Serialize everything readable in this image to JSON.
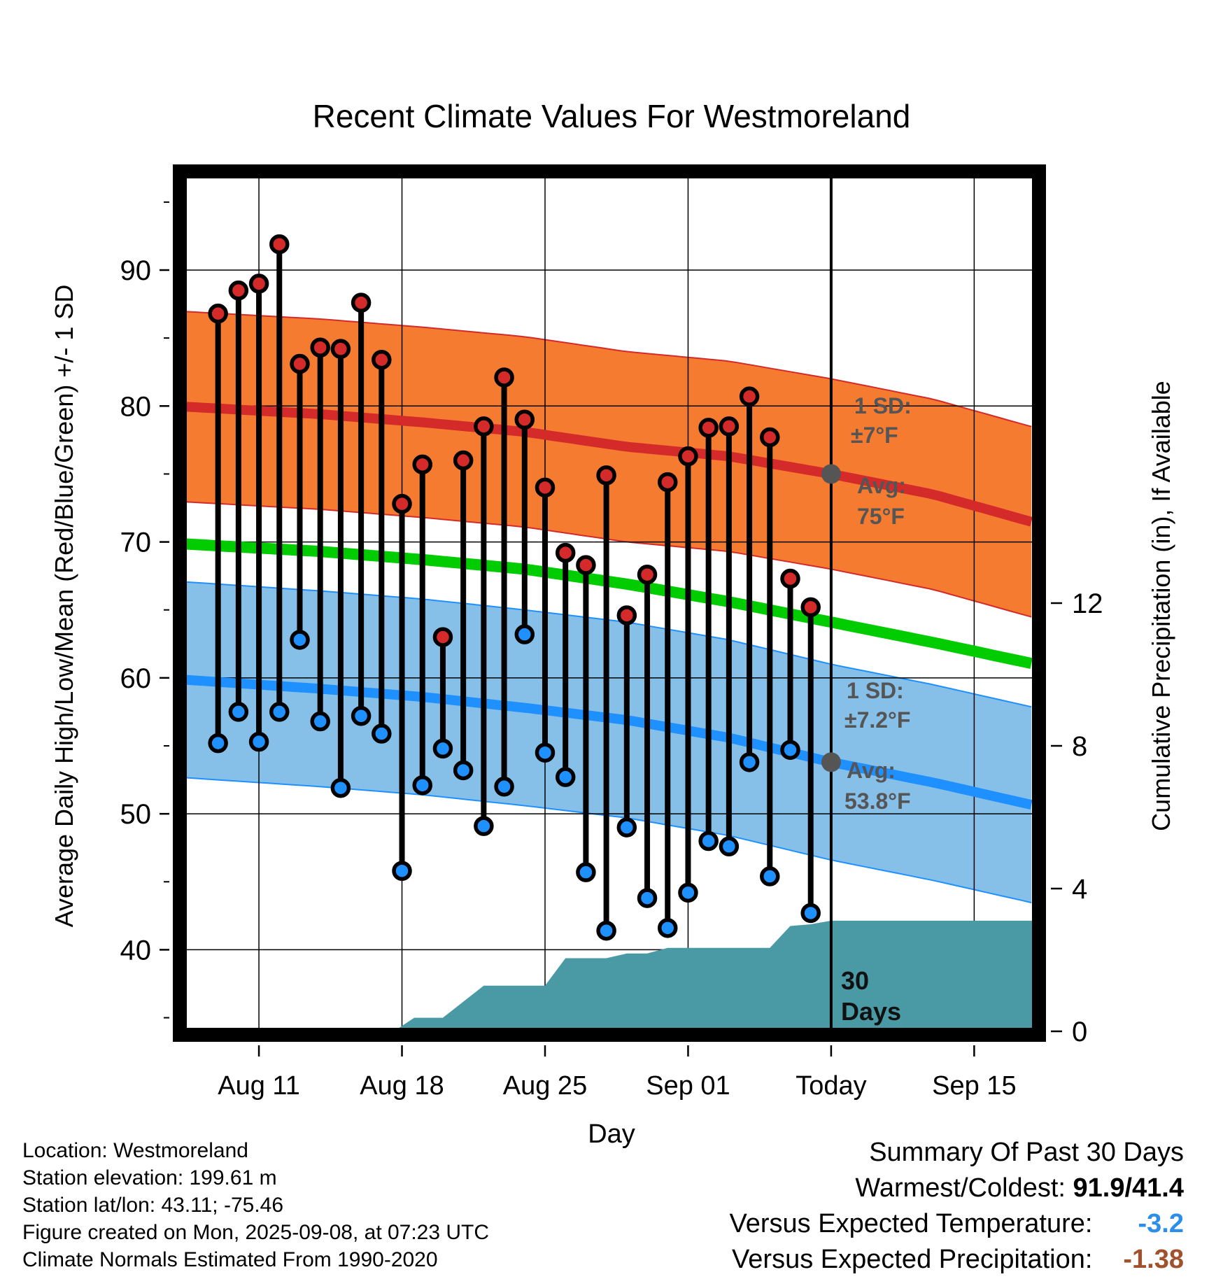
{
  "chart_data": {
    "type": "line",
    "title": "Recent Climate Values For Westmoreland",
    "xlabel": "Day",
    "ylabel": "Average Daily High/Low/Mean (Red/Blue/Green) +/- 1 SD",
    "ylabel_right": "Cumulative Precipitation (in), If Available",
    "ylim": [
      34,
      97
    ],
    "ylim_right": [
      0,
      24
    ],
    "x_ticks": [
      "Aug 11",
      "Aug 18",
      "Aug 25",
      "Sep 01",
      "Today",
      "Sep 15"
    ],
    "x_range_days": [
      -31.7,
      10.0
    ],
    "y_ticks": [
      "40",
      "50",
      "60",
      "70",
      "80",
      "90"
    ],
    "y_ticks_right": [
      "0",
      "4",
      "8",
      "12"
    ],
    "today_days": 0,
    "daily": {
      "days": [
        -30,
        -29,
        -28,
        -27,
        -26,
        -25,
        -24,
        -23,
        -22,
        -21,
        -20,
        -19,
        -18,
        -17,
        -16,
        -15,
        -14,
        -13,
        -12,
        -11,
        -10,
        -9,
        -8,
        -7,
        -6,
        -5,
        -4,
        -3,
        -2,
        -1
      ],
      "high": [
        86.8,
        88.5,
        89.0,
        91.9,
        83.1,
        84.3,
        84.2,
        87.6,
        83.4,
        72.8,
        75.7,
        63.0,
        76.0,
        78.5,
        82.1,
        79.0,
        74.0,
        69.2,
        68.3,
        74.9,
        64.6,
        67.6,
        74.4,
        76.3,
        78.4,
        78.5,
        80.7,
        77.7,
        67.3,
        65.2
      ],
      "low": [
        55.2,
        57.5,
        55.3,
        57.5,
        62.8,
        56.8,
        51.9,
        57.2,
        55.9,
        45.8,
        52.1,
        54.8,
        53.2,
        49.1,
        52.0,
        63.2,
        54.5,
        52.7,
        45.7,
        41.4,
        49.0,
        43.8,
        41.6,
        44.2,
        48.0,
        47.6,
        53.8,
        45.4,
        54.7,
        42.7
      ]
    },
    "normals": {
      "days": [
        -31,
        -25,
        -20,
        -15,
        -10,
        -5,
        0,
        5,
        10
      ],
      "high": [
        79.9,
        79.4,
        78.8,
        78.1,
        77.0,
        76.3,
        75.0,
        73.5,
        71.4
      ],
      "mean": [
        69.8,
        69.3,
        68.7,
        68.0,
        66.9,
        65.6,
        64.1,
        62.6,
        61.0
      ],
      "low": [
        59.8,
        59.2,
        58.6,
        57.8,
        56.9,
        55.6,
        53.8,
        52.3,
        50.6
      ],
      "high_sd": 7,
      "low_sd": 7.2
    },
    "precip": {
      "days": [
        -29.5,
        -21.4,
        -20.4,
        -19.0,
        -17.0,
        -16.0,
        -15.0,
        -14.0,
        -13.0,
        -12.0,
        -11.0,
        -10.0,
        -9.0,
        -8.0,
        -7.0,
        -6.0,
        -5.0,
        -4.0,
        -3.0,
        -2.0,
        -1.0,
        0,
        10.0
      ],
      "cum_in": [
        0,
        0,
        0.38,
        0.38,
        1.28,
        1.28,
        1.28,
        1.28,
        2.05,
        2.05,
        2.05,
        2.18,
        2.18,
        2.34,
        2.34,
        2.34,
        2.34,
        2.34,
        2.34,
        2.95,
        3.0,
        3.1,
        3.1
      ]
    },
    "annotations": {
      "high_sd_label": [
        "1 SD:",
        "±7°F"
      ],
      "high_avg_label": [
        "Avg:",
        "75°F"
      ],
      "low_sd_label": [
        "1 SD:",
        "±7.2°F"
      ],
      "low_avg_label": [
        "Avg:",
        "53.8°F"
      ],
      "days_label": [
        "30",
        "Days"
      ]
    },
    "colors": {
      "high_band": "#f47b2f",
      "high_line": "#d42a2a",
      "mean_line": "#00cc00",
      "low_band": "#86c0e8",
      "low_line": "#1e90ff",
      "precip_fill": "#4a9aa5",
      "dot_high": "#d42a2a",
      "dot_low": "#1e90ff",
      "annot": "#555555"
    }
  },
  "footer": {
    "location": "Location: Westmoreland",
    "elevation": "Station elevation: 199.61 m",
    "latlon": "Station lat/lon: 43.11; -75.46",
    "created": "Figure created on Mon, 2025-09-08, at 07:23 UTC",
    "normals": "Climate Normals Estimated From 1990-2020"
  },
  "summary": {
    "title": "Summary Of Past 30 Days",
    "warm_cold_label": "Warmest/Coldest:",
    "warm_cold_value": "91.9/41.4",
    "temp_label": "Versus Expected Temperature:",
    "temp_value": "-3.2",
    "precip_label": "Versus Expected Precipitation:",
    "precip_value": "-1.38"
  }
}
